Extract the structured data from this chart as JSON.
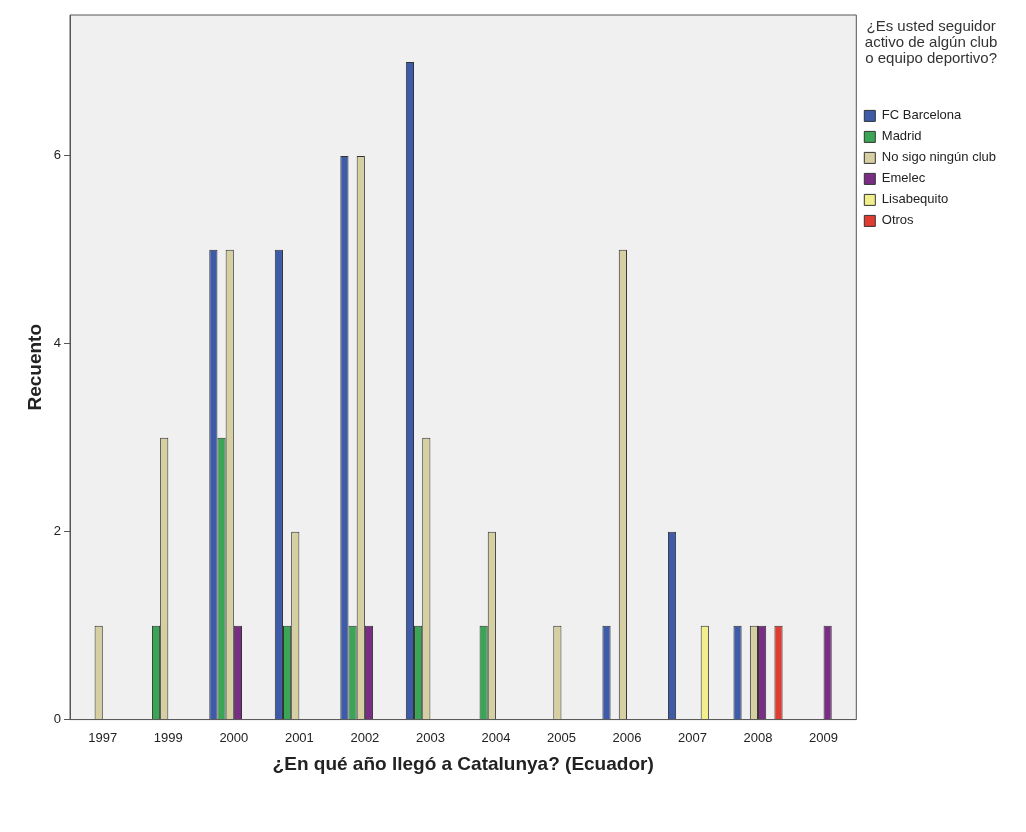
{
  "chart_data": {
    "type": "bar",
    "xlabel": "¿En qué año llegó a Catalunya? (Ecuador)",
    "ylabel": "Recuento",
    "legend_title": "¿Es usted seguidor activo de algún club o equipo deportivo?",
    "categories": [
      "1997",
      "1999",
      "2000",
      "2001",
      "2002",
      "2003",
      "2004",
      "2005",
      "2006",
      "2007",
      "2008",
      "2009"
    ],
    "series": [
      {
        "name": "FC Barcelona",
        "color": "#3d5ba8",
        "values": [
          null,
          null,
          5,
          5,
          6,
          7,
          null,
          null,
          1,
          2,
          1,
          null
        ]
      },
      {
        "name": "Madrid",
        "color": "#3aa655",
        "values": [
          null,
          1,
          3,
          1,
          1,
          1,
          1,
          null,
          null,
          null,
          null,
          null
        ]
      },
      {
        "name": "No sigo ningún club",
        "color": "#d6cfa2",
        "values": [
          1,
          3,
          5,
          2,
          6,
          3,
          2,
          1,
          5,
          null,
          1,
          null
        ]
      },
      {
        "name": "Emelec",
        "color": "#7a2d84",
        "values": [
          null,
          null,
          1,
          null,
          1,
          null,
          null,
          null,
          null,
          null,
          1,
          1
        ]
      },
      {
        "name": "Lisabequito",
        "color": "#f2ee8c",
        "values": [
          null,
          null,
          null,
          null,
          null,
          null,
          null,
          null,
          null,
          1,
          null,
          null
        ]
      },
      {
        "name": "Otros",
        "color": "#e03c31",
        "values": [
          null,
          null,
          null,
          null,
          null,
          null,
          null,
          null,
          null,
          null,
          1,
          null
        ]
      }
    ],
    "ylim": [
      0,
      7.5
    ],
    "yticks": [
      0,
      2,
      4,
      6
    ],
    "grid": false,
    "legend": "top right"
  }
}
